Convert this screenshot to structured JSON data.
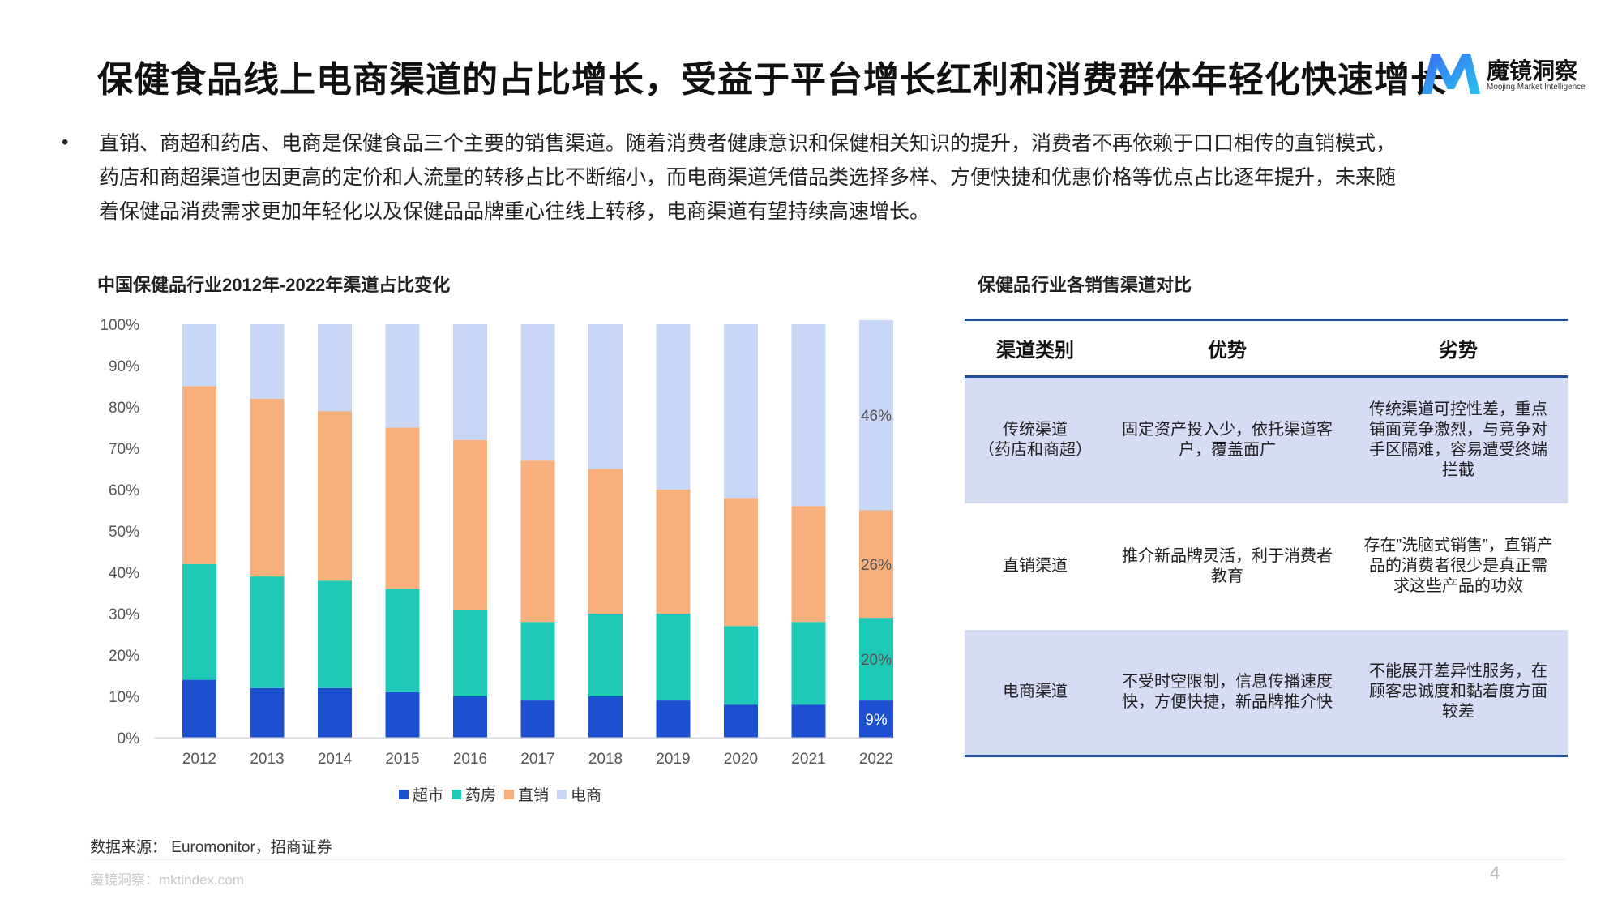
{
  "header": {
    "title": "保健食品线上电商渠道的占比增长，受益于平台增长红利和消费群体年轻化快速增长",
    "logo_name": "魔镜洞察",
    "logo_sub": "Moojing Market Intelligence"
  },
  "bullet": {
    "marker": "•",
    "lines": [
      "直销、商超和药店、电商是保健食品三个主要的销售渠道。随着消费者健康意识和保健相关知识的提升，消费者不再依赖于口口相传的直销模式，",
      "药店和商超渠道也因更高的定价和人流量的转移占比不断缩小，而电商渠道凭借品类选择多样、方便快捷和优惠价格等优点占比逐年提升，未来随",
      "着保健品消费需求更加年轻化以及保健品品牌重心往线上转移，电商渠道有望持续高速增长。"
    ]
  },
  "chart_data": {
    "type": "bar",
    "stacked": true,
    "title": "中国保健品行业2012年-2022年渠道占比变化",
    "categories": [
      "2012",
      "2013",
      "2014",
      "2015",
      "2016",
      "2017",
      "2018",
      "2019",
      "2020",
      "2021",
      "2022"
    ],
    "y_ticks": [
      "0%",
      "10%",
      "20%",
      "30%",
      "40%",
      "50%",
      "60%",
      "70%",
      "80%",
      "90%",
      "100%"
    ],
    "ylim": [
      0,
      100
    ],
    "series": [
      {
        "name": "超市",
        "color": "#1d4fd1",
        "values": [
          14,
          12,
          12,
          11,
          10,
          9,
          10,
          9,
          8,
          8,
          9
        ]
      },
      {
        "name": "药房",
        "color": "#1ec9b8",
        "values": [
          28,
          27,
          26,
          25,
          21,
          19,
          20,
          21,
          19,
          20,
          20
        ]
      },
      {
        "name": "直销",
        "color": "#f7b07c",
        "values": [
          43,
          43,
          41,
          39,
          41,
          39,
          35,
          30,
          31,
          28,
          26
        ]
      },
      {
        "name": "电商",
        "color": "#c9d7f6",
        "values": [
          15,
          18,
          21,
          25,
          28,
          33,
          35,
          40,
          42,
          44,
          46
        ]
      }
    ],
    "data_labels": [
      {
        "category": "2022",
        "series": "超市",
        "text": "9%"
      },
      {
        "category": "2022",
        "series": "药房",
        "text": "20%"
      },
      {
        "category": "2022",
        "series": "直销",
        "text": "26%"
      },
      {
        "category": "2022",
        "series": "电商",
        "text": "46%"
      }
    ],
    "legend_position": "bottom",
    "grid": false
  },
  "table": {
    "title": "保健品行业各销售渠道对比",
    "headers": [
      "渠道类别",
      "优势",
      "劣势"
    ],
    "rows": [
      {
        "category": "传统渠道\n（药店和商超）",
        "advantage": "固定资产投入少，依托渠道客户，覆盖面广",
        "disadvantage": "传统渠道可控性差，重点铺面竞争激烈，与竞争对手区隔难，容易遭受终端拦截"
      },
      {
        "category": "直销渠道",
        "advantage": "推介新品牌灵活，利于消费者教育",
        "disadvantage": "存在”洗脑式销售”，直销产品的消费者很少是真正需求这些产品的功效"
      },
      {
        "category": "电商渠道",
        "advantage": "不受时空限制，信息传播速度快，方便快捷，新品牌推介快",
        "disadvantage": "不能展开差异性服务，在顾客忠诚度和黏着度方面较差"
      }
    ]
  },
  "footer": {
    "source": "数据来源：  Euromonitor，招商证券",
    "site": "魔镜洞察：mktindex.com",
    "page": "4"
  }
}
